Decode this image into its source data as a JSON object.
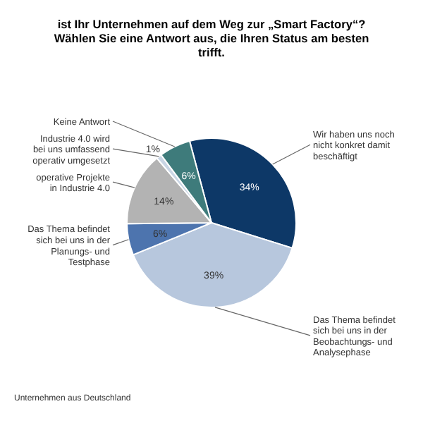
{
  "chart_data": {
    "type": "pie",
    "title": "ist Ihr Unternehmen auf dem Weg zur „Smart Factory“? Wählen Sie eine Antwort aus, die Ihren Status am besten trifft.",
    "categories": [
      "Wir haben uns noch nicht konkret damit beschäftigt",
      "Das Thema befindet sich bei uns in der Beobachtungs- und Analysephase",
      "Das Thema befindet sich bei uns in der Planungs- und Testphase",
      "operative Projekte in Industrie 4.0",
      "Industrie 4.0 wird bei uns umfassend operativ umgesetzt",
      "Keine Antwort"
    ],
    "values": [
      34,
      39,
      6,
      14,
      1,
      6
    ],
    "value_labels": [
      "34%",
      "39%",
      "6%",
      "14%",
      "1%",
      "6%"
    ],
    "colors": [
      "#0d3867",
      "#b7c7dd",
      "#4d74ae",
      "#b3b3b3",
      "#c9d5e4",
      "#3e7b7b"
    ],
    "annotations": [
      "Unternehmen aus Deutschland"
    ]
  }
}
